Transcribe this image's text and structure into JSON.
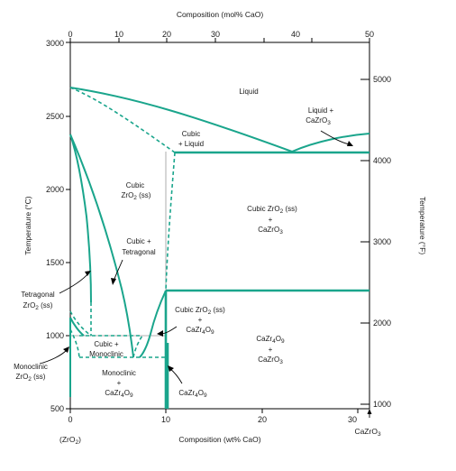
{
  "colors": {
    "phase_boundary": "#1aa58c",
    "frame": "#000000",
    "text": "#1a1a1a"
  },
  "axes": {
    "top_title": "Composition (mol% CaO)",
    "top_ticks": [
      "0",
      "10",
      "20",
      "30",
      "40",
      "50"
    ],
    "bottom_title": "Composition (wt% CaO)",
    "bottom_ticks": [
      "0",
      "10",
      "20",
      "30"
    ],
    "bottom_left_label": "(ZrO",
    "bottom_left_sub": "2",
    "bottom_left_close": ")",
    "left_title": "Temperature (°C)",
    "left_ticks": [
      "500",
      "1000",
      "1500",
      "2000",
      "2500",
      "3000"
    ],
    "right_title": "Temperature (°F)",
    "right_ticks": [
      "1000",
      "2000",
      "3000",
      "4000",
      "5000"
    ],
    "corner_label_main": "CaZrO",
    "corner_label_sub": "3"
  },
  "regions": {
    "liquid": "Liquid",
    "liquid_cazro3_line1": "Liquid +",
    "liquid_cazro3_line2": "CaZrO",
    "liquid_cazro3_sub": "3",
    "cubic_liquid_line1": "Cubic",
    "cubic_liquid_line2": "+ Liquid",
    "cubic_ss_line1": "Cubic",
    "cubic_ss_line2": "ZrO",
    "cubic_ss_sub": "2",
    "cubic_ss_tail": " (ss)",
    "cubic_cazro3_line1a": "Cubic ZrO",
    "cubic_cazro3_line1_sub": "2",
    "cubic_cazro3_line1b": " (ss)",
    "cubic_cazro3_plus": "+",
    "cubic_cazro3_line2": "CaZrO",
    "cubic_cazro3_line2_sub": "3",
    "cubic_tetragonal_line1": "Cubic +",
    "cubic_tetragonal_line2": "Tetragonal",
    "tetragonal_line1": "Tetragonal",
    "tetragonal_line2": "ZrO",
    "tetragonal_sub": "2",
    "tetragonal_tail": " (ss)",
    "cubic_cazr4o9_line1a": "Cubic ZrO",
    "cubic_cazr4o9_line1_sub": "2",
    "cubic_cazr4o9_line1b": " (ss)",
    "cubic_cazr4o9_plus": "+",
    "cubic_cazr4o9_line2a": "CaZr",
    "cubic_cazr4o9_line2_sub1": "4",
    "cubic_cazr4o9_line2b": "O",
    "cubic_cazr4o9_line2_sub2": "9",
    "cubic_monoclinic_line1": "Cubic +",
    "cubic_monoclinic_line2": "Monoclinic",
    "cazr4o9_cazro3_line1a": "CaZr",
    "cazr4o9_cazro3_line1_sub1": "4",
    "cazr4o9_cazro3_line1b": "O",
    "cazr4o9_cazro3_line1_sub2": "9",
    "cazr4o9_cazro3_plus": "+",
    "cazr4o9_cazro3_line2": "CaZrO",
    "cazr4o9_cazro3_line2_sub": "3",
    "monoclinic_ss_line1": "Monoclinic",
    "monoclinic_ss_line2": "ZrO",
    "monoclinic_ss_sub": "2",
    "monoclinic_ss_tail": " (ss)",
    "monoclinic_cazr4o9_line1": "Monoclinic",
    "monoclinic_cazr4o9_plus": "+",
    "monoclinic_cazr4o9_line2a": "CaZr",
    "monoclinic_cazr4o9_line2_sub1": "4",
    "monoclinic_cazr4o9_line2b": "O",
    "monoclinic_cazr4o9_line2_sub2": "9",
    "cazr4o9_line1a": "CaZr",
    "cazr4o9_line1_sub1": "4",
    "cazr4o9_line1b": "O",
    "cazr4o9_line1_sub2": "9"
  }
}
